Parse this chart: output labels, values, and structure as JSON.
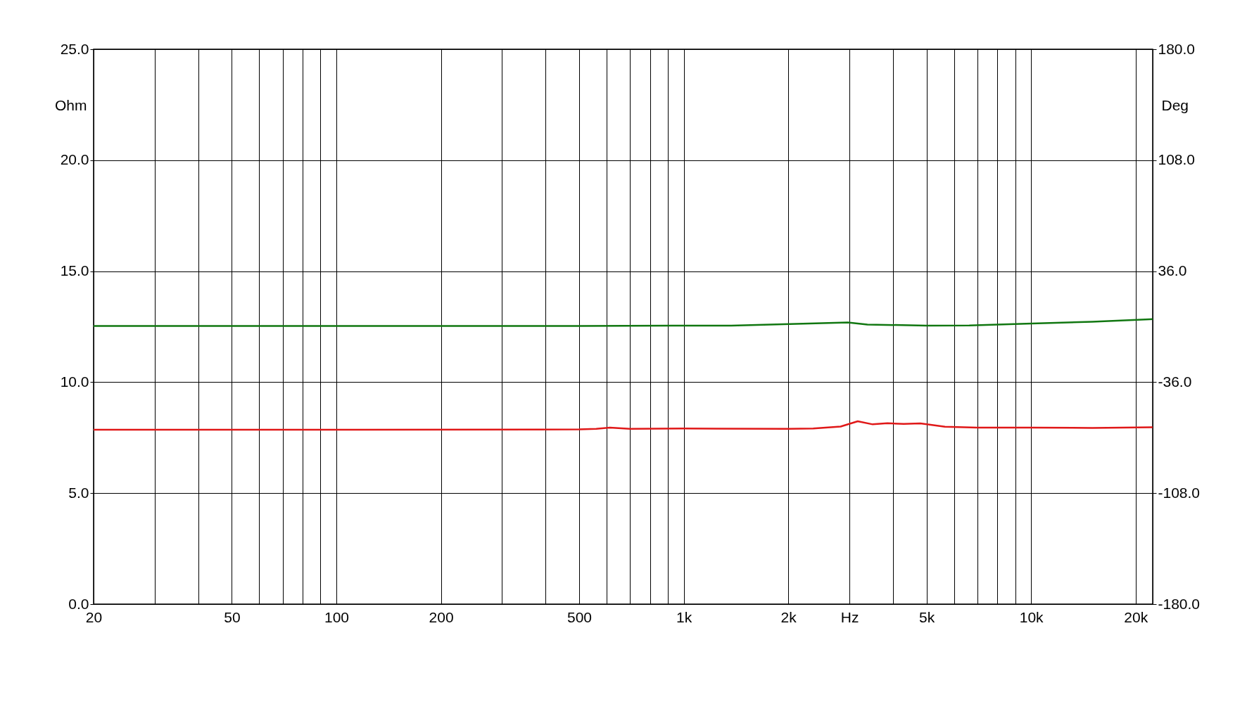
{
  "chart_data": {
    "type": "line",
    "ylabel": "Ohm",
    "y2label": "Deg",
    "log": "x",
    "grid": true,
    "line_style": "solid",
    "marker": "none",
    "xlim": [
      20,
      22400
    ],
    "ylim": [
      0,
      25
    ],
    "y2lim": [
      -180,
      180
    ],
    "xticks": [
      20,
      {
        "value": 30,
        "label": null
      },
      {
        "value": 40,
        "label": null
      },
      50,
      {
        "value": 60,
        "label": null
      },
      {
        "value": 70,
        "label": null
      },
      {
        "value": 80,
        "label": null
      },
      {
        "value": 90,
        "label": null
      },
      100,
      200,
      {
        "value": 300,
        "label": null
      },
      {
        "value": 400,
        "label": null
      },
      500,
      {
        "value": 600,
        "label": null
      },
      {
        "value": 700,
        "label": null
      },
      {
        "value": 800,
        "label": null
      },
      {
        "value": 900,
        "label": null
      },
      {
        "value": 1000,
        "label": "1k"
      },
      {
        "value": 2000,
        "label": "2k"
      },
      {
        "value": 3000,
        "label": "Hz"
      },
      {
        "value": 4000,
        "label": null
      },
      {
        "value": 5000,
        "label": "5k"
      },
      {
        "value": 6000,
        "label": null
      },
      {
        "value": 7000,
        "label": null
      },
      {
        "value": 8000,
        "label": null
      },
      {
        "value": 9000,
        "label": null
      },
      {
        "value": 10000,
        "label": "10k"
      },
      {
        "value": 20000,
        "label": "20k"
      }
    ],
    "yticks": [
      {
        "value": 0,
        "label": "0.0"
      },
      {
        "value": 5,
        "label": "5.0"
      },
      {
        "value": 10,
        "label": "10.0"
      },
      {
        "value": 15,
        "label": "15.0"
      },
      {
        "value": 20,
        "label": "20.0"
      },
      {
        "value": 25,
        "label": "25.0"
      }
    ],
    "y2ticks": [
      {
        "value": -180,
        "label": "-180.0"
      },
      {
        "value": -108,
        "label": "-108.0"
      },
      {
        "value": -36,
        "label": "-36.0"
      },
      {
        "value": 36,
        "label": "36.0"
      },
      {
        "value": 108,
        "label": "108.0"
      },
      {
        "value": 180,
        "label": "180.0"
      }
    ],
    "series": [
      {
        "color": "#e01818",
        "x": [
          20,
          100,
          500,
          560,
          613,
          700,
          1000,
          2000,
          2360,
          2830,
          3170,
          3500,
          3860,
          4300,
          4800,
          5650,
          7000,
          10000,
          15000,
          22400
        ],
        "values": [
          7.86,
          7.86,
          7.87,
          7.9,
          7.95,
          7.9,
          7.91,
          7.9,
          7.91,
          8.0,
          8.24,
          8.1,
          8.15,
          8.12,
          8.14,
          7.99,
          7.95,
          7.95,
          7.94,
          7.97
        ]
      },
      {
        "color": "#117711",
        "axis": "y2",
        "x": [
          20,
          100,
          500,
          929,
          1370,
          2020,
          2970,
          3380,
          5000,
          6640,
          10050,
          15000,
          21900,
          22400
        ],
        "values": [
          0.4,
          0.4,
          0.4,
          0.7,
          0.7,
          1.7,
          2.7,
          1.4,
          0.7,
          0.8,
          2.0,
          3.2,
          4.8,
          4.9
        ]
      }
    ]
  }
}
